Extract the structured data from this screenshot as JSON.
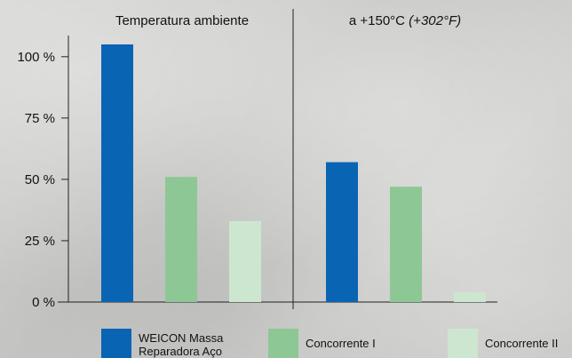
{
  "chart_data": {
    "type": "bar",
    "groups": [
      "Temperatura ambiente",
      "a +150°C"
    ],
    "group_title_suffix_italic": [
      "",
      "(+302°F)"
    ],
    "series": [
      {
        "name": "WEICON Massa Reparadora Aço",
        "values": [
          105,
          57
        ],
        "color": "#0a64b4"
      },
      {
        "name": "Concorrente I",
        "values": [
          51,
          47
        ],
        "color": "#8dc795"
      },
      {
        "name": "Concorrente II",
        "values": [
          33,
          4
        ],
        "color": "#cde6d0"
      }
    ],
    "y_ticks": [
      "0 %",
      "25 %",
      "50 %",
      "75 %",
      "100 %"
    ],
    "y_tick_values": [
      0,
      25,
      50,
      75,
      100
    ],
    "ylim": [
      0,
      105
    ],
    "title": "",
    "xlabel": "",
    "ylabel": "",
    "legend_position": "bottom"
  }
}
